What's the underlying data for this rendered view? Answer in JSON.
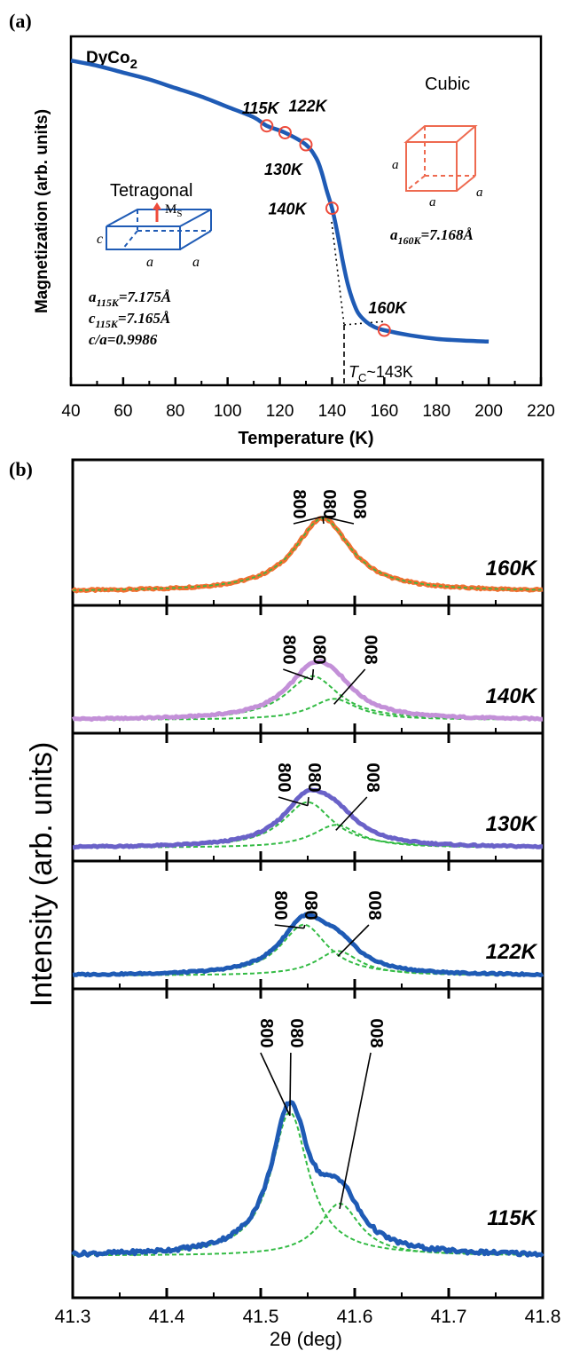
{
  "panel_a": {
    "panel_label": "(a)",
    "material_label": "DyCo",
    "material_subscript": "2",
    "tetragonal_title": "Tetragonal",
    "cubic_title": "Cubic",
    "ms_label": "M",
    "ms_subscript": "S",
    "edge_a": "a",
    "edge_c": "c",
    "tet_params": [
      {
        "sym": "a",
        "sub": "115K",
        "val": "=7.175Å"
      },
      {
        "sym": "c",
        "sub": "115K",
        "val": "=7.165Å"
      },
      {
        "sym": "c/a=0.9986",
        "sub": "",
        "val": ""
      }
    ],
    "cubic_param": {
      "sym": "a",
      "sub": "160K",
      "val": "=7.168Å"
    },
    "tc_symbol": "T",
    "tc_subscript": "C",
    "tc_value": "~143K"
  },
  "panel_b": {
    "panel_label": "(b)"
  },
  "chart_data": [
    {
      "type": "line",
      "title": "",
      "xlabel": "Temperature (K)",
      "ylabel": "Magnetization (arb. units)",
      "xlim": [
        40,
        220
      ],
      "ylim": [
        0,
        1
      ],
      "xticks": [
        40,
        60,
        80,
        100,
        120,
        140,
        160,
        180,
        200,
        220
      ],
      "xtick_labels": [
        "40",
        "60",
        "80",
        "100",
        "120",
        "140",
        "160",
        "180",
        "200",
        "220"
      ],
      "grid": false,
      "series": [
        {
          "color": "#1f5bb5",
          "x": [
            40,
            50,
            60,
            70,
            80,
            90,
            100,
            110,
            115,
            122,
            130,
            134,
            136,
            138,
            140,
            142,
            144,
            146,
            148,
            150,
            153,
            156,
            160,
            170,
            180,
            190,
            200
          ],
          "y": [
            0.94,
            0.925,
            0.905,
            0.885,
            0.86,
            0.835,
            0.805,
            0.775,
            0.75,
            0.73,
            0.695,
            0.655,
            0.615,
            0.56,
            0.51,
            0.44,
            0.36,
            0.29,
            0.24,
            0.205,
            0.18,
            0.165,
            0.155,
            0.14,
            0.13,
            0.125,
            0.122
          ]
        }
      ],
      "markers": [
        {
          "x": 115,
          "y": 0.75,
          "label": "115K"
        },
        {
          "x": 122,
          "y": 0.73,
          "label": "122K"
        },
        {
          "x": 130,
          "y": 0.695,
          "label": "130K"
        },
        {
          "x": 140,
          "y": 0.51,
          "label": "140K"
        },
        {
          "x": 160,
          "y": 0.155,
          "label": "160K"
        }
      ],
      "annotation_tc": 143,
      "marker_color": "#ee4b3b"
    },
    {
      "type": "line",
      "title": "",
      "xlabel": "2θ (deg)",
      "ylabel": "Intensity (arb. units)",
      "xlim": [
        41.3,
        41.8
      ],
      "xticks": [
        41.3,
        41.4,
        41.5,
        41.6,
        41.7,
        41.8
      ],
      "xtick_labels": [
        "41.3",
        "41.4",
        "41.5",
        "41.6",
        "41.7",
        "41.8"
      ],
      "fit_color": "#33bb44",
      "panels": [
        {
          "label": "160K",
          "color": "#f07030",
          "peak_labels": [
            "800",
            "080",
            "008"
          ],
          "fits": [
            {
              "center": 41.566,
              "height": 0.7,
              "width": 0.036
            }
          ],
          "background": 0.06
        },
        {
          "label": "140K",
          "color": "#c390d8",
          "peak_labels": [
            "800",
            "080",
            "008"
          ],
          "fits": [
            {
              "center": 41.555,
              "height": 0.5,
              "width": 0.034
            },
            {
              "center": 41.578,
              "height": 0.24,
              "width": 0.03
            }
          ],
          "background": 0.06
        },
        {
          "label": "130K",
          "color": "#6a62c8",
          "peak_labels": [
            "800",
            "080",
            "008"
          ],
          "fits": [
            {
              "center": 41.55,
              "height": 0.52,
              "width": 0.032
            },
            {
              "center": 41.58,
              "height": 0.26,
              "width": 0.03
            }
          ],
          "background": 0.06
        },
        {
          "label": "122K",
          "color": "#1f5bb5",
          "peak_labels": [
            "800",
            "080",
            "008"
          ],
          "fits": [
            {
              "center": 41.546,
              "height": 0.58,
              "width": 0.03
            },
            {
              "center": 41.582,
              "height": 0.28,
              "width": 0.028
            }
          ],
          "background": 0.06
        },
        {
          "label": "115K",
          "color": "#1f5bb5",
          "peak_labels": [
            "800",
            "080",
            "008"
          ],
          "fits": [
            {
              "center": 41.531,
              "height": 0.66,
              "width": 0.024
            },
            {
              "center": 41.584,
              "height": 0.24,
              "width": 0.026
            }
          ],
          "background": 0.06
        }
      ]
    }
  ]
}
